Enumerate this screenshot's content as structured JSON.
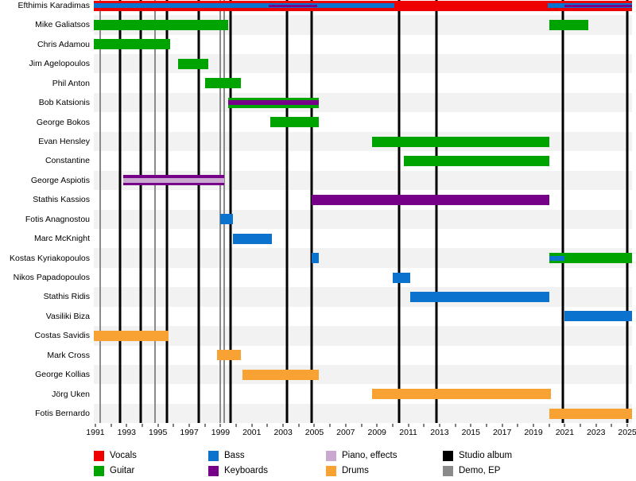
{
  "chart_data": {
    "type": "timeline",
    "x_axis": {
      "min": 1990.9,
      "max": 2025.3,
      "tick_start": 1991,
      "tick_end": 2025,
      "labels": [
        "1991",
        "1993",
        "1995",
        "1997",
        "1999",
        "2001",
        "2003",
        "2005",
        "2007",
        "2009",
        "2011",
        "2013",
        "2015",
        "2017",
        "2019",
        "2021",
        "2023",
        "2025"
      ]
    },
    "colors": {
      "vocals": "#EE0000",
      "guitar": "#00A400",
      "bass": "#0B72CE",
      "keyboards": "#770088",
      "piano_effects": "#C9A9CF",
      "drums": "#F7A233",
      "studio_album": "#000000",
      "demo_ep": "#8A8A8A",
      "row_stripe": "#F2F2F2"
    },
    "studio_albums": [
      1992.6,
      1993.9,
      1995.6,
      1997.6,
      1999.65,
      2003.25,
      2004.8,
      2010.4,
      2012.8,
      2020.9,
      2025.0
    ],
    "demos_eps": [
      1991.3,
      1994.8,
      1999.0,
      1999.25
    ],
    "members": [
      {
        "name": "Efthimis Karadimas",
        "bars": [
          {
            "role": "vocals",
            "from": 1990.9,
            "to": 2025.3,
            "layer": 0
          },
          {
            "role": "bass",
            "from": 1990.9,
            "to": 2010.1,
            "layer": 1
          },
          {
            "role": "keyboards",
            "from": 2002.1,
            "to": 2005.2,
            "layer": 2
          },
          {
            "role": "bass",
            "from": 2019.9,
            "to": 2025.3,
            "layer": 1
          },
          {
            "role": "keyboards",
            "from": 2021.0,
            "to": 2025.3,
            "layer": 2
          }
        ]
      },
      {
        "name": "Mike Galiatsos",
        "bars": [
          {
            "role": "guitar",
            "from": 1990.9,
            "to": 1999.5,
            "layer": 0
          },
          {
            "role": "guitar",
            "from": 2020.0,
            "to": 2022.5,
            "layer": 0
          }
        ]
      },
      {
        "name": "Chris Adamou",
        "bars": [
          {
            "role": "guitar",
            "from": 1990.9,
            "to": 1995.8,
            "layer": 0
          }
        ]
      },
      {
        "name": "Jim Agelopoulos",
        "bars": [
          {
            "role": "guitar",
            "from": 1996.3,
            "to": 1998.2,
            "layer": 0
          }
        ]
      },
      {
        "name": "Phil Anton",
        "bars": [
          {
            "role": "guitar",
            "from": 1998.0,
            "to": 2000.3,
            "layer": 0
          }
        ]
      },
      {
        "name": "Bob Katsionis",
        "bars": [
          {
            "role": "guitar",
            "from": 1999.5,
            "to": 2005.3,
            "layer": 0
          },
          {
            "role": "keyboards",
            "from": 1999.5,
            "to": 2005.3,
            "layer": 1
          }
        ]
      },
      {
        "name": "George Bokos",
        "bars": [
          {
            "role": "guitar",
            "from": 2002.2,
            "to": 2005.3,
            "layer": 0
          }
        ]
      },
      {
        "name": "Evan Hensley",
        "bars": [
          {
            "role": "guitar",
            "from": 2008.7,
            "to": 2020.0,
            "layer": 0
          }
        ]
      },
      {
        "name": "Constantine",
        "bars": [
          {
            "role": "guitar",
            "from": 2010.7,
            "to": 2020.0,
            "layer": 0
          }
        ]
      },
      {
        "name": "George Aspiotis",
        "bars": [
          {
            "role": "keyboards",
            "from": 1992.8,
            "to": 1999.25,
            "layer": 0
          },
          {
            "role": "piano_effects",
            "from": 1992.8,
            "to": 1999.25,
            "layer": 1
          }
        ]
      },
      {
        "name": "Stathis Kassios",
        "bars": [
          {
            "role": "keyboards",
            "from": 2004.8,
            "to": 2020.0,
            "layer": 0
          }
        ]
      },
      {
        "name": "Fotis Anagnostou",
        "bars": [
          {
            "role": "bass",
            "from": 1999.0,
            "to": 1999.8,
            "layer": 0
          }
        ]
      },
      {
        "name": "Marc McKnight",
        "bars": [
          {
            "role": "bass",
            "from": 1999.8,
            "to": 2002.3,
            "layer": 0
          }
        ]
      },
      {
        "name": "Kostas Kyriakopoulos",
        "bars": [
          {
            "role": "bass",
            "from": 2004.8,
            "to": 2005.3,
            "layer": 0
          },
          {
            "role": "guitar",
            "from": 2020.0,
            "to": 2025.3,
            "layer": 0
          },
          {
            "role": "bass",
            "from": 2020.0,
            "to": 2021.0,
            "layer": 1
          }
        ]
      },
      {
        "name": "Nikos Papadopoulos",
        "bars": [
          {
            "role": "bass",
            "from": 2010.0,
            "to": 2011.1,
            "layer": 0
          }
        ]
      },
      {
        "name": "Stathis Ridis",
        "bars": [
          {
            "role": "bass",
            "from": 2011.1,
            "to": 2020.0,
            "layer": 0
          }
        ]
      },
      {
        "name": "Vasiliki Biza",
        "bars": [
          {
            "role": "bass",
            "from": 2021.0,
            "to": 2025.3,
            "layer": 0
          }
        ]
      },
      {
        "name": "Costas Savidis",
        "bars": [
          {
            "role": "drums",
            "from": 1990.9,
            "to": 1995.7,
            "layer": 0
          }
        ]
      },
      {
        "name": "Mark Cross",
        "bars": [
          {
            "role": "drums",
            "from": 1998.8,
            "to": 2000.3,
            "layer": 0
          }
        ]
      },
      {
        "name": "George Kollias",
        "bars": [
          {
            "role": "drums",
            "from": 2000.4,
            "to": 2005.3,
            "layer": 0
          }
        ]
      },
      {
        "name": "Jörg Uken",
        "bars": [
          {
            "role": "drums",
            "from": 2008.7,
            "to": 2020.1,
            "layer": 0
          }
        ]
      },
      {
        "name": "Fotis Bernardo",
        "bars": [
          {
            "role": "drums",
            "from": 2020.0,
            "to": 2025.3,
            "layer": 0
          }
        ]
      }
    ],
    "legend": [
      {
        "label": "Vocals",
        "role": "vocals"
      },
      {
        "label": "Guitar",
        "role": "guitar"
      },
      {
        "label": "Bass",
        "role": "bass"
      },
      {
        "label": "Keyboards",
        "role": "keyboards"
      },
      {
        "label": "Piano, effects",
        "role": "piano_effects"
      },
      {
        "label": "Drums",
        "role": "drums"
      },
      {
        "label": "Studio album",
        "role": "studio_album"
      },
      {
        "label": "Demo, EP",
        "role": "demo_ep"
      }
    ]
  }
}
